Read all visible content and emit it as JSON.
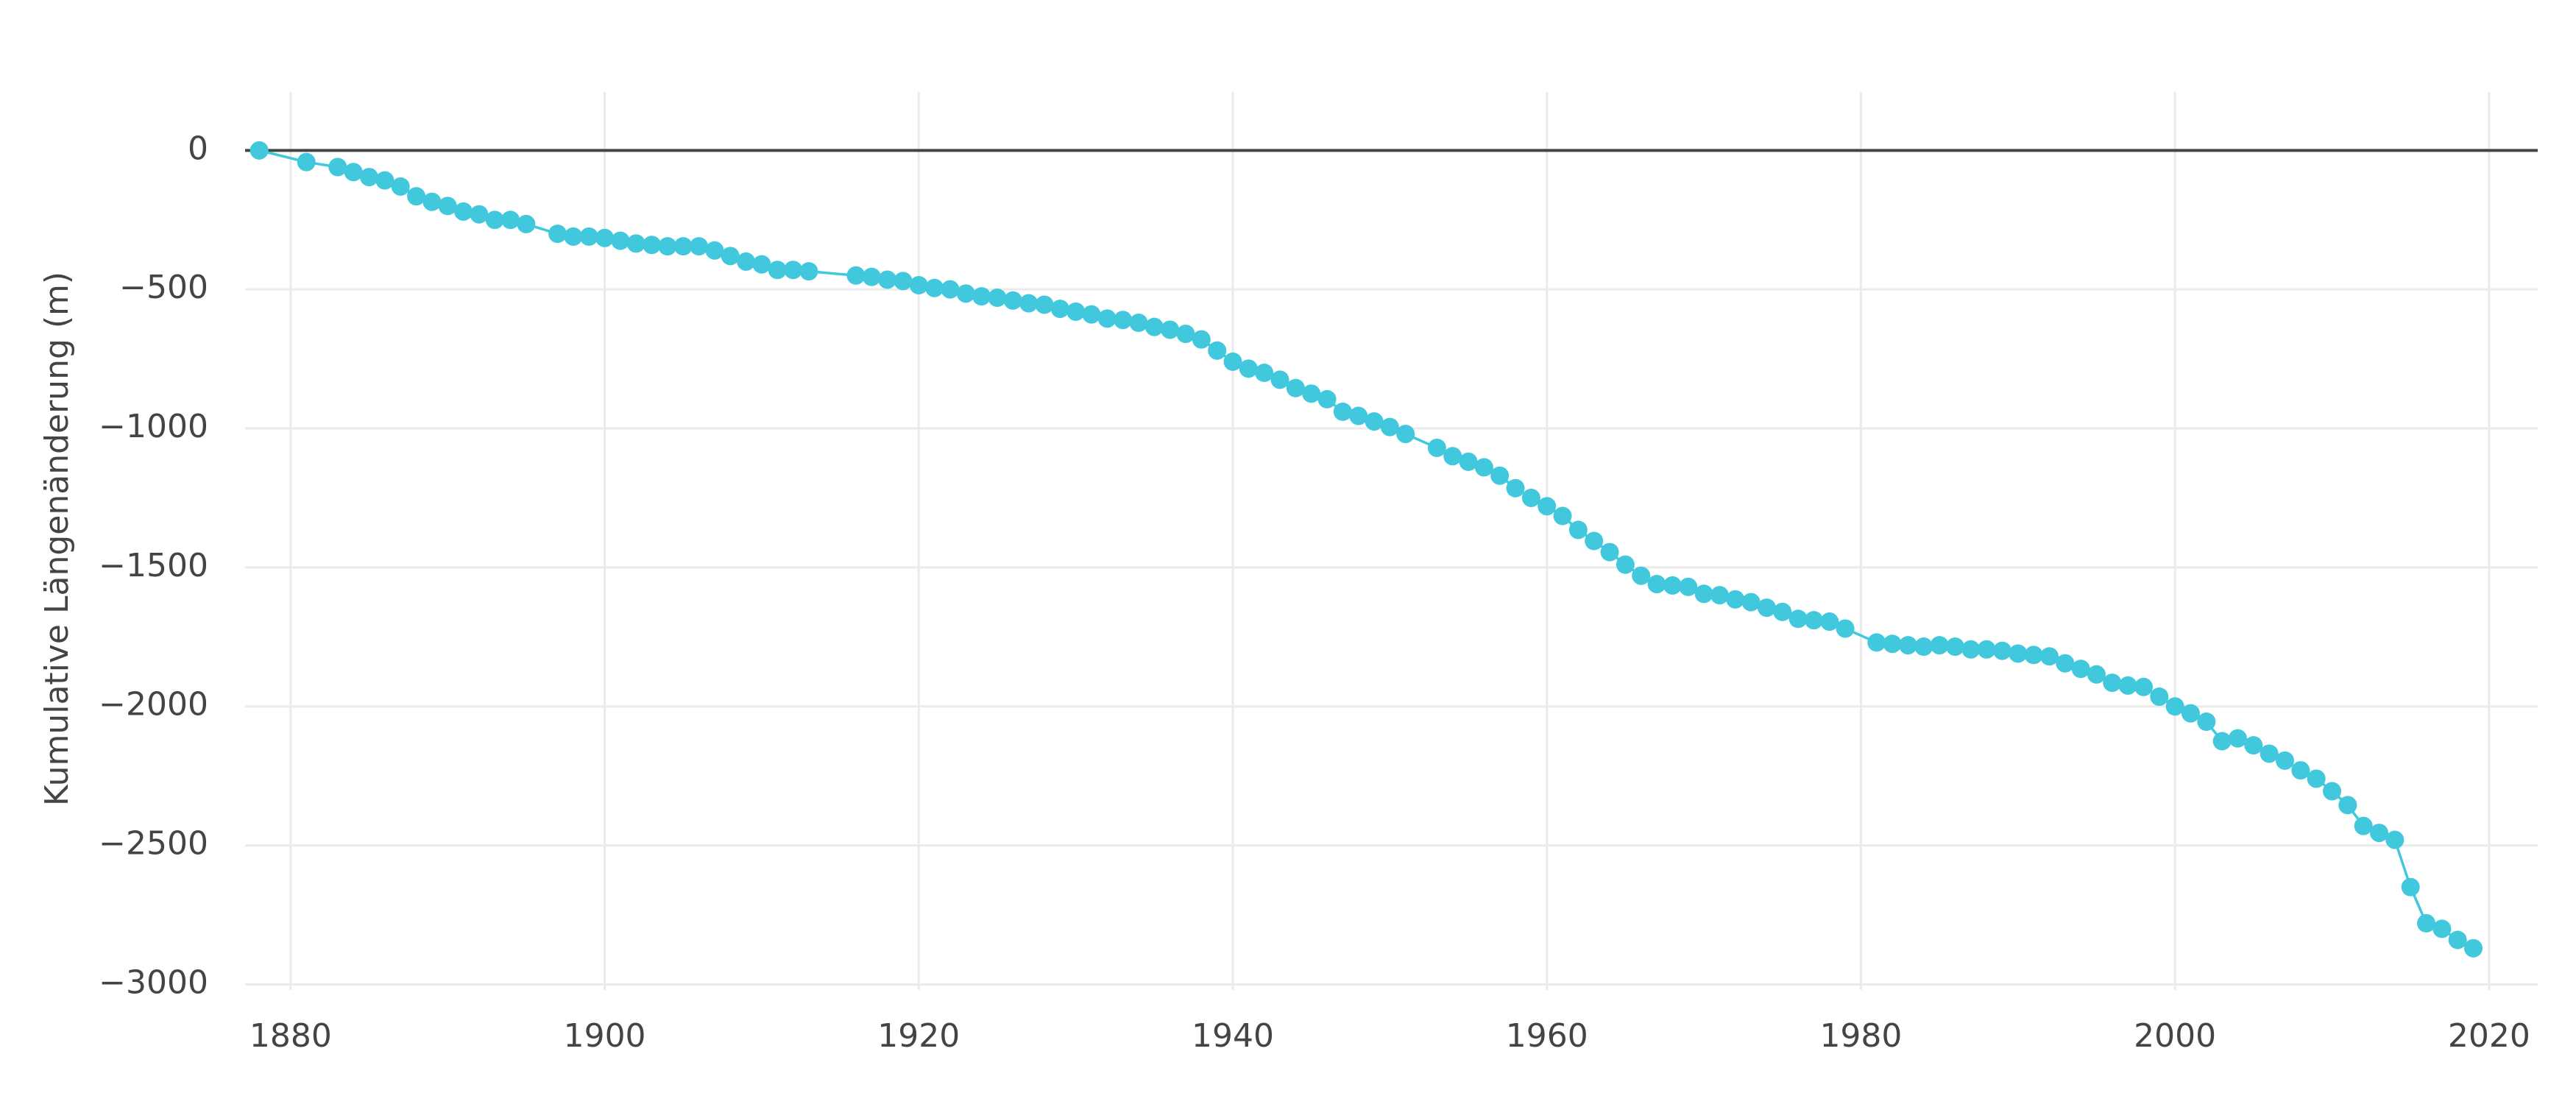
{
  "chart_data": {
    "type": "line",
    "y_label": "Kumulative Längenänderung (m)",
    "x": [
      1878,
      1881,
      1883,
      1884,
      1885,
      1886,
      1887,
      1888,
      1889,
      1890,
      1891,
      1892,
      1893,
      1894,
      1895,
      1897,
      1898,
      1899,
      1900,
      1901,
      1902,
      1903,
      1904,
      1905,
      1906,
      1907,
      1908,
      1909,
      1910,
      1911,
      1912,
      1913,
      1916,
      1917,
      1918,
      1919,
      1920,
      1921,
      1922,
      1923,
      1924,
      1925,
      1926,
      1927,
      1928,
      1929,
      1930,
      1931,
      1932,
      1933,
      1934,
      1935,
      1936,
      1937,
      1938,
      1939,
      1940,
      1941,
      1942,
      1943,
      1944,
      1945,
      1946,
      1947,
      1948,
      1949,
      1950,
      1951,
      1953,
      1954,
      1955,
      1956,
      1957,
      1958,
      1959,
      1960,
      1961,
      1962,
      1963,
      1964,
      1965,
      1966,
      1967,
      1968,
      1969,
      1970,
      1971,
      1972,
      1973,
      1974,
      1975,
      1976,
      1977,
      1978,
      1979,
      1981,
      1982,
      1983,
      1984,
      1985,
      1986,
      1987,
      1988,
      1989,
      1990,
      1991,
      1992,
      1993,
      1994,
      1995,
      1996,
      1997,
      1998,
      1999,
      2000,
      2001,
      2002,
      2003,
      2004,
      2005,
      2006,
      2007,
      2008,
      2009,
      2010,
      2011,
      2012,
      2013,
      2014,
      2015,
      2016,
      2017,
      2018,
      2019
    ],
    "series": [
      {
        "color": "#41c8dd",
        "values": [
          0,
          -42,
          -60,
          -78,
          -96,
          -108,
          -130,
          -165,
          -185,
          -200,
          -220,
          -230,
          -250,
          -250,
          -265,
          -300,
          -310,
          -310,
          -315,
          -325,
          -335,
          -340,
          -345,
          -345,
          -345,
          -360,
          -380,
          -400,
          -410,
          -430,
          -430,
          -435,
          -450,
          -455,
          -465,
          -470,
          -485,
          -495,
          -500,
          -515,
          -525,
          -530,
          -540,
          -550,
          -555,
          -570,
          -580,
          -590,
          -605,
          -610,
          -620,
          -635,
          -645,
          -660,
          -680,
          -720,
          -760,
          -785,
          -800,
          -825,
          -855,
          -875,
          -895,
          -940,
          -955,
          -975,
          -995,
          -1020,
          -1070,
          -1100,
          -1120,
          -1140,
          -1170,
          -1215,
          -1250,
          -1280,
          -1315,
          -1365,
          -1405,
          -1445,
          -1490,
          -1530,
          -1560,
          -1565,
          -1570,
          -1595,
          -1600,
          -1615,
          -1625,
          -1645,
          -1660,
          -1685,
          -1690,
          -1695,
          -1720,
          -1770,
          -1775,
          -1780,
          -1785,
          -1780,
          -1785,
          -1795,
          -1795,
          -1800,
          -1810,
          -1815,
          -1820,
          -1845,
          -1865,
          -1885,
          -1915,
          -1925,
          -1930,
          -1965,
          -2000,
          -2025,
          -2055,
          -2125,
          -2115,
          -2140,
          -2170,
          -2195,
          -2230,
          -2260,
          -2305,
          -2355,
          -2430,
          -2455,
          -2480,
          -2650,
          -2780,
          -2800,
          -2840,
          -2870
        ]
      }
    ],
    "xlim": [
      1877.1,
      2023.1
    ],
    "xticks": [
      1880,
      1900,
      1920,
      1940,
      1960,
      1980,
      2000,
      2020
    ],
    "ylim": [
      -3020,
      210
    ],
    "yticks": [
      0,
      {
        "value": -500,
        "label": "−500"
      },
      {
        "value": -1000,
        "label": "−1000"
      },
      {
        "value": -1500,
        "label": "−1500"
      },
      {
        "value": -2000,
        "label": "−2000"
      },
      {
        "value": -2500,
        "label": "−2500"
      },
      {
        "value": -3000,
        "label": "−3000"
      }
    ],
    "grid": true,
    "zeroline": true
  }
}
